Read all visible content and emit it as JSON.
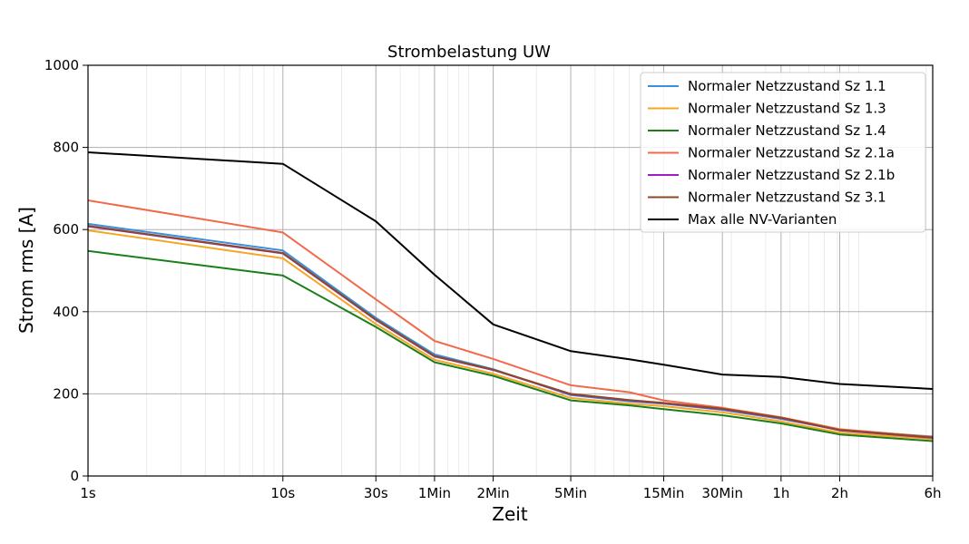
{
  "chart_data": {
    "type": "line",
    "title": "Strombelastung UW",
    "xlabel": "Zeit",
    "ylabel": "Strom rms [A]",
    "xscale": "log",
    "xlim": [
      1,
      21600
    ],
    "ylim": [
      0,
      1000
    ],
    "grid": true,
    "legend_position": "top-right",
    "x_ticks": [
      {
        "value": 1,
        "label": "1s"
      },
      {
        "value": 10,
        "label": "10s"
      },
      {
        "value": 30,
        "label": "30s"
      },
      {
        "value": 60,
        "label": "1Min"
      },
      {
        "value": 120,
        "label": "2Min"
      },
      {
        "value": 300,
        "label": "5Min"
      },
      {
        "value": 900,
        "label": "15Min"
      },
      {
        "value": 1800,
        "label": "30Min"
      },
      {
        "value": 3600,
        "label": "1h"
      },
      {
        "value": 7200,
        "label": "2h"
      },
      {
        "value": 21600,
        "label": "6h"
      }
    ],
    "y_ticks": [
      0,
      200,
      400,
      600,
      800,
      1000
    ],
    "x": [
      1,
      10,
      30,
      60,
      120,
      300,
      600,
      900,
      1800,
      3600,
      7200,
      21600
    ],
    "series": [
      {
        "name": "Normaler Netzzustand Sz 1.1",
        "color": "#3a8fde",
        "values": [
          614,
          549,
          385,
          296,
          260,
          197,
          182,
          176,
          161,
          139,
          112,
          96
        ]
      },
      {
        "name": "Normaler Netzzustand Sz 1.3",
        "color": "#f5a623",
        "values": [
          598,
          530,
          370,
          283,
          249,
          190,
          176,
          170,
          155,
          133,
          105,
          90
        ]
      },
      {
        "name": "Normaler Netzzustand Sz 1.4",
        "color": "#1a7f1a",
        "values": [
          548,
          488,
          363,
          277,
          244,
          184,
          172,
          163,
          148,
          128,
          101,
          85
        ]
      },
      {
        "name": "Normaler Netzzustand Sz 2.1a",
        "color": "#f2694a",
        "values": [
          671,
          593,
          430,
          329,
          285,
          221,
          204,
          184,
          166,
          143,
          114,
          95
        ]
      },
      {
        "name": "Normaler Netzzustand Sz 2.1b",
        "color": "#9d1fc4",
        "values": [
          608,
          542,
          380,
          291,
          258,
          199,
          184,
          177,
          163,
          141,
          111,
          93
        ]
      },
      {
        "name": "Normaler Netzzustand Sz 3.1",
        "color": "#8b4a24",
        "values": [
          609,
          543,
          381,
          292,
          259,
          200,
          185,
          178,
          164,
          142,
          112,
          94
        ]
      },
      {
        "name": "Max alle NV-Varianten",
        "color": "#000000",
        "values": [
          788,
          760,
          620,
          490,
          369,
          304,
          284,
          271,
          247,
          241,
          224,
          212
        ]
      }
    ]
  }
}
